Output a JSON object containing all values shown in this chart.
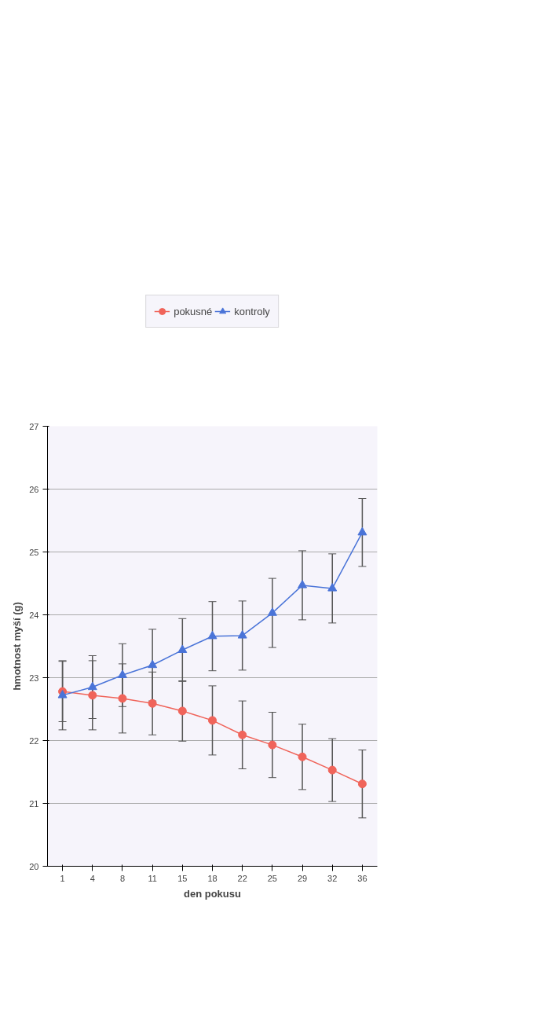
{
  "chart_data": {
    "type": "line",
    "xlabel": "den pokusu",
    "ylabel": "hmotnost myší (g)",
    "categories": [
      "1",
      "4",
      "8",
      "11",
      "15",
      "18",
      "22",
      "25",
      "29",
      "32",
      "36"
    ],
    "series": [
      {
        "name": "pokusné",
        "color": "#f0645a",
        "marker": "circle",
        "values": [
          22.78,
          22.72,
          22.67,
          22.59,
          22.47,
          22.32,
          22.09,
          21.93,
          21.74,
          21.53,
          21.31
        ],
        "errors": [
          0.48,
          0.55,
          0.55,
          0.5,
          0.48,
          0.55,
          0.54,
          0.52,
          0.52,
          0.5,
          0.54
        ]
      },
      {
        "name": "kontroly",
        "color": "#4a74d8",
        "marker": "triangle",
        "values": [
          22.72,
          22.85,
          23.04,
          23.2,
          23.44,
          23.66,
          23.67,
          24.03,
          24.47,
          24.42,
          25.31
        ],
        "errors": [
          0.55,
          0.5,
          0.5,
          0.57,
          0.5,
          0.55,
          0.55,
          0.55,
          0.55,
          0.55,
          0.54
        ]
      }
    ],
    "ylim": [
      20,
      27
    ],
    "yticks": [
      20,
      21,
      22,
      23,
      24,
      25,
      26,
      27
    ],
    "grid": "y",
    "legend": "top"
  }
}
